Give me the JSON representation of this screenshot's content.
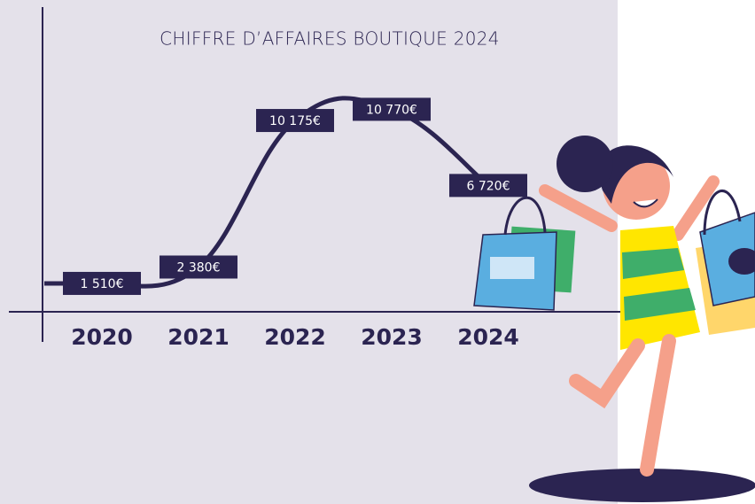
{
  "chart_data": {
    "type": "line",
    "title": "CHIFFRE D’AFFAIRES BOUTIQUE 2024",
    "categories": [
      "2020",
      "2021",
      "2022",
      "2023",
      "2024"
    ],
    "values": [
      1510,
      2380,
      10175,
      10770,
      6720
    ],
    "value_labels": [
      "1 510€",
      "2 380€",
      "10 175€",
      "10 770€",
      "6 720€"
    ],
    "color": "#2b2451",
    "ylim": [
      0,
      14700
    ]
  }
}
